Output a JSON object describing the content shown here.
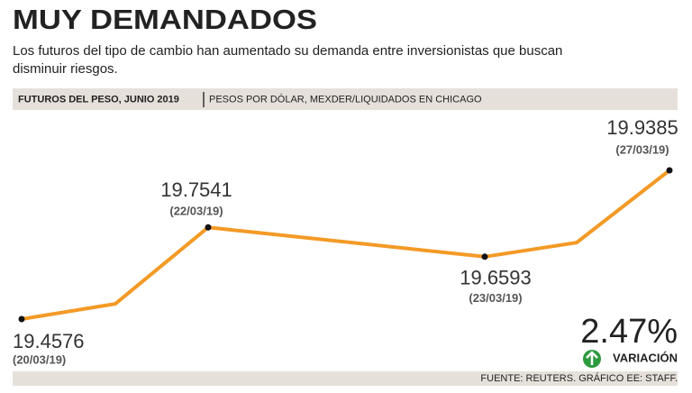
{
  "chart_data": {
    "type": "line",
    "title": "MUY DEMANDADOS",
    "subtitle": [
      "Los futuros del tipo de cambio han aumentado su demanda entre inversionistas que buscan",
      "disminuir riesgos."
    ],
    "header": "FUTUROS DEL PESO, JUNIO 2019",
    "units": "PESOS POR DÓLAR, MEXDER/LIQUIDADOS EN CHICAGO",
    "categories": [
      "(20/03/19)",
      null,
      "(22/03/19)",
      "(23/03/19)",
      null,
      "(27/03/19)"
    ],
    "series": [
      {
        "name": null,
        "color": "#f39a26",
        "values": [
          19.4576,
          19.507,
          19.7541,
          19.6593,
          19.705,
          19.9385
        ]
      }
    ],
    "change": {
      "value": 2.47,
      "label": "2.47%"
    },
    "change_label": "VARIACIÓN",
    "source": "FUENTE: REUTERS. GRÁFICO EE: STAFF."
  }
}
